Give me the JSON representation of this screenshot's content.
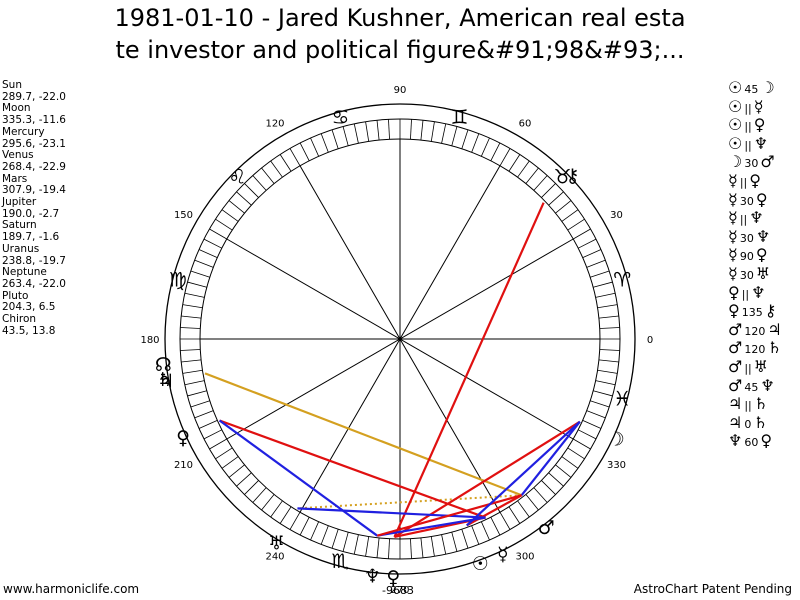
{
  "title": {
    "line1": "1981-01-10 - Jared Kushner, American real esta",
    "line2": "te investor and political figure&#91;98&#93;..."
  },
  "planets": [
    {
      "name": "Sun",
      "coords": "289.7, -22.0"
    },
    {
      "name": "Moon",
      "coords": "335.3, -11.6"
    },
    {
      "name": "Mercury",
      "coords": "295.6, -23.1"
    },
    {
      "name": "Venus",
      "coords": "268.4, -22.9"
    },
    {
      "name": "Mars",
      "coords": "307.9, -19.4"
    },
    {
      "name": "Jupiter",
      "coords": "190.0, -2.7"
    },
    {
      "name": "Saturn",
      "coords": "189.7, -1.6"
    },
    {
      "name": "Uranus",
      "coords": "238.8, -19.7"
    },
    {
      "name": "Neptune",
      "coords": "263.4, -22.0"
    },
    {
      "name": "Pluto",
      "coords": "204.3, 6.5"
    },
    {
      "name": "Chiron",
      "coords": "43.5, 13.8"
    }
  ],
  "aspects": [
    {
      "p1": "☉",
      "a": "45",
      "p2": "☽"
    },
    {
      "p1": "☉",
      "a": "||",
      "p2": "☿"
    },
    {
      "p1": "☉",
      "a": "||",
      "p2": "♀"
    },
    {
      "p1": "☉",
      "a": "||",
      "p2": "♆"
    },
    {
      "p1": "☽",
      "a": "30",
      "p2": "♂"
    },
    {
      "p1": "☿",
      "a": "||",
      "p2": "♀"
    },
    {
      "p1": "☿",
      "a": "30",
      "p2": "♀"
    },
    {
      "p1": "☿",
      "a": "||",
      "p2": "♆"
    },
    {
      "p1": "☿",
      "a": "30",
      "p2": "♆"
    },
    {
      "p1": "☿",
      "a": "90",
      "p2": "♀"
    },
    {
      "p1": "☿",
      "a": "30",
      "p2": "♅"
    },
    {
      "p1": "♀",
      "a": "||",
      "p2": "♆"
    },
    {
      "p1": "♀",
      "a": "135",
      "p2": "⚷"
    },
    {
      "p1": "♂",
      "a": "120",
      "p2": "♃"
    },
    {
      "p1": "♂",
      "a": "120",
      "p2": "♄"
    },
    {
      "p1": "♂",
      "a": "||",
      "p2": "♅"
    },
    {
      "p1": "♂",
      "a": "45",
      "p2": "♆"
    },
    {
      "p1": "♃",
      "a": "||",
      "p2": "♄"
    },
    {
      "p1": "♃",
      "a": "0",
      "p2": "♄"
    },
    {
      "p1": "♆",
      "a": "60",
      "p2": "♀"
    }
  ],
  "wheel": {
    "degree_labels": [
      {
        "deg": 0,
        "text": "0"
      },
      {
        "deg": 30,
        "text": "30"
      },
      {
        "deg": 60,
        "text": "60"
      },
      {
        "deg": 90,
        "text": "90"
      },
      {
        "deg": 120,
        "text": "120"
      },
      {
        "deg": 150,
        "text": "150"
      },
      {
        "deg": 180,
        "text": "180"
      },
      {
        "deg": 210,
        "text": "210"
      },
      {
        "deg": 240,
        "text": "240"
      },
      {
        "deg": 270,
        "text": "270"
      },
      {
        "deg": 300,
        "text": "300"
      },
      {
        "deg": 330,
        "text": "330"
      }
    ],
    "signs": [
      {
        "deg": 15,
        "glyph": "♈"
      },
      {
        "deg": 45,
        "glyph": "♉"
      },
      {
        "deg": 75,
        "glyph": "♊"
      },
      {
        "deg": 105,
        "glyph": "♋"
      },
      {
        "deg": 135,
        "glyph": "♌"
      },
      {
        "deg": 165,
        "glyph": "♍"
      },
      {
        "deg": 255,
        "glyph": "♏"
      },
      {
        "deg": 345,
        "glyph": "♓"
      }
    ],
    "bodies": [
      {
        "name": "sun",
        "glyph": "☉",
        "deg": 289.7
      },
      {
        "name": "moon",
        "glyph": "☽",
        "deg": 335.3
      },
      {
        "name": "mercury",
        "glyph": "☿",
        "deg": 295.6
      },
      {
        "name": "venus",
        "glyph": "♀",
        "deg": 268.4
      },
      {
        "name": "mars",
        "glyph": "♂",
        "deg": 307.9
      },
      {
        "name": "jupiter",
        "glyph": "♃",
        "deg": 190.0
      },
      {
        "name": "saturn",
        "glyph": "♄",
        "deg": 189.7
      },
      {
        "name": "uranus",
        "glyph": "♅",
        "deg": 238.8
      },
      {
        "name": "neptune",
        "glyph": "♆",
        "deg": 263.4
      },
      {
        "name": "pluto",
        "glyph": "♀",
        "deg": 204.3
      },
      {
        "name": "chiron",
        "glyph": "⚷",
        "deg": 43.5
      },
      {
        "name": "node",
        "glyph": "☊",
        "deg": 186.0
      }
    ],
    "aspect_lines": [
      {
        "from": "mars",
        "to": "jupiter",
        "color": "#d4a020",
        "dash": false
      },
      {
        "from": "mars",
        "to": "uranus",
        "color": "#d4a020",
        "dash": true
      },
      {
        "from": "venus",
        "to": "chiron",
        "color": "#e01010",
        "dash": false
      },
      {
        "from": "pluto",
        "to": "mercury",
        "color": "#e01010",
        "dash": false
      },
      {
        "from": "moon",
        "to": "venus",
        "color": "#e01010",
        "dash": false
      },
      {
        "from": "moon",
        "to": "mars",
        "color": "#2020e0",
        "dash": false
      },
      {
        "from": "mars",
        "to": "sun",
        "color": "#e01010",
        "dash": false
      },
      {
        "from": "mercury",
        "to": "venus",
        "color": "#e01010",
        "dash": false
      },
      {
        "from": "mercury",
        "to": "uranus",
        "color": "#2020e0",
        "dash": false
      },
      {
        "from": "mercury",
        "to": "neptune",
        "color": "#2020e0",
        "dash": false
      },
      {
        "from": "pluto",
        "to": "neptune",
        "color": "#2020e0",
        "dash": false
      },
      {
        "from": "mars",
        "to": "neptune",
        "color": "#e01010",
        "dash": false
      },
      {
        "from": "sun",
        "to": "moon",
        "color": "#2020e0",
        "dash": false
      }
    ],
    "extra_label": "-9683"
  },
  "footer": {
    "left": "www.harmoniclife.com",
    "right": "AstroChart Patent Pending"
  }
}
